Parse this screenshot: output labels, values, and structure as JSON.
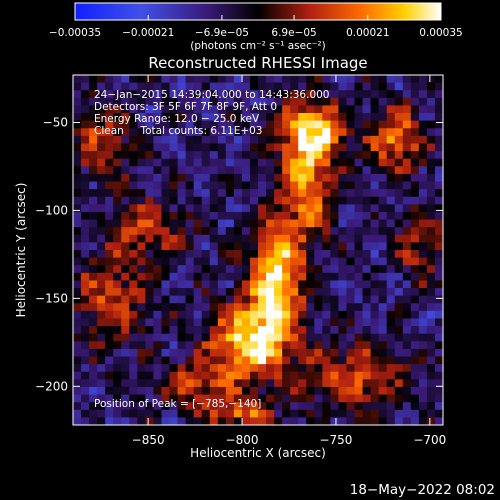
{
  "chart_data": {
    "type": "heatmap",
    "title": "Reconstructed RHESSI Image",
    "xlabel": "Heliocentric X (arcsec)",
    "ylabel": "Heliocentric Y (arcsec)",
    "xlim": [
      -890,
      -693
    ],
    "ylim": [
      -222,
      -23
    ],
    "x_ticks": [
      {
        "value": -850,
        "label": "−850"
      },
      {
        "value": -800,
        "label": "−800"
      },
      {
        "value": -750,
        "label": "−750"
      },
      {
        "value": -700,
        "label": "−700"
      }
    ],
    "y_ticks": [
      {
        "value": -50,
        "label": "−50"
      },
      {
        "value": -100,
        "label": "−100"
      },
      {
        "value": -150,
        "label": "−150"
      },
      {
        "value": -200,
        "label": "−200"
      }
    ],
    "colorbar": {
      "range": [
        -0.00035,
        0.00035
      ],
      "ticks": [
        {
          "value": -0.00035,
          "label": "−0.00035"
        },
        {
          "value": -0.00021,
          "label": "−0.00021"
        },
        {
          "value": -6.9e-05,
          "label": "−6.9e−05"
        },
        {
          "value": 6.9e-05,
          "label": "6.9e−05"
        },
        {
          "value": 0.00021,
          "label": "0.00021"
        },
        {
          "value": 0.00035,
          "label": "0.00035"
        }
      ],
      "units": "(photons cm⁻² s⁻¹ asec⁻²)"
    },
    "info_lines": [
      "24−Jan−2015 14:39:04.000 to 14:43:36.000",
      "Detectors: 3F 5F 6F 7F 8F 9F, Att 0",
      "Energy Range: 12.0 − 25.0 keV",
      "Clean     Total counts: 6.11E+03"
    ],
    "peak_label": "Position of Peak = [−785,−140]",
    "peak": {
      "x": -785,
      "y": -140
    },
    "sources": [
      {
        "x": -796,
        "y": -175,
        "amp": 1.0,
        "sx": 14,
        "sy": 14
      },
      {
        "x": -782,
        "y": -140,
        "amp": 0.95,
        "sx": 10,
        "sy": 22
      },
      {
        "x": -766,
        "y": -80,
        "amp": 0.75,
        "sx": 10,
        "sy": 26
      },
      {
        "x": -760,
        "y": -55,
        "amp": 0.7,
        "sx": 12,
        "sy": 10
      },
      {
        "x": -718,
        "y": -60,
        "amp": 0.7,
        "sx": 10,
        "sy": 12
      },
      {
        "x": -740,
        "y": -195,
        "amp": 0.55,
        "sx": 20,
        "sy": 12
      },
      {
        "x": -870,
        "y": -150,
        "amp": 0.5,
        "sx": 14,
        "sy": 18
      },
      {
        "x": -850,
        "y": -110,
        "amp": 0.5,
        "sx": 14,
        "sy": 12
      },
      {
        "x": -875,
        "y": -60,
        "amp": 0.45,
        "sx": 12,
        "sy": 14
      },
      {
        "x": -825,
        "y": -200,
        "amp": 0.5,
        "sx": 14,
        "sy": 10
      },
      {
        "x": -800,
        "y": -215,
        "amp": 0.6,
        "sx": 12,
        "sy": 6
      },
      {
        "x": -705,
        "y": -120,
        "amp": 0.4,
        "sx": 10,
        "sy": 14
      }
    ]
  },
  "footer": {
    "timestamp": "18−May−2022 08:02"
  }
}
